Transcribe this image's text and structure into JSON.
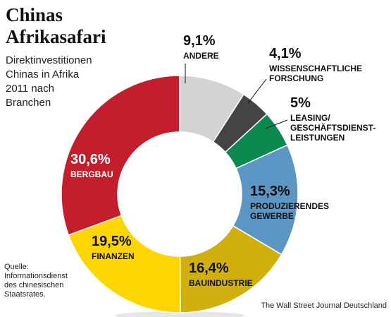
{
  "header": {
    "title": "Chinas\nAfrikasafari",
    "subtitle": "Direktinvestitionen\nChinas in Afrika\n2011 nach\nBranchen"
  },
  "footer": {
    "source": "Quelle:\nInformationsdienst\ndes chinesischen\nStaatsrates.",
    "credit": "The Wall Street Journal Deutschland"
  },
  "chart_data": {
    "type": "pie",
    "donut": true,
    "slices": [
      {
        "label_lines": [
          "ANDERE"
        ],
        "value": 9.1,
        "value_label": "9,1%",
        "color": "#d3d3d3"
      },
      {
        "label_lines": [
          "WISSENSCHAFTLICHE",
          "FORSCHUNG"
        ],
        "value": 4.1,
        "value_label": "4,1%",
        "color": "#444444"
      },
      {
        "label_lines": [
          "LEASING/",
          "GESCHÄFTSDIENST-",
          "LEISTUNGEN"
        ],
        "value": 5.0,
        "value_label": "5%",
        "color": "#0a8a4e"
      },
      {
        "label_lines": [
          "PRODUZIERENDES",
          "GEWERBE"
        ],
        "value": 15.3,
        "value_label": "15,3%",
        "color": "#5b96c4"
      },
      {
        "label_lines": [
          "BAUINDUSTRIE"
        ],
        "value": 16.4,
        "value_label": "16,4%",
        "color": "#d1b00e"
      },
      {
        "label_lines": [
          "FINANZEN"
        ],
        "value": 19.5,
        "value_label": "19,5%",
        "color": "#fdd600"
      },
      {
        "label_lines": [
          "BERGBAU"
        ],
        "value": 30.6,
        "value_label": "30,6%",
        "color": "#c41e2d"
      }
    ]
  }
}
